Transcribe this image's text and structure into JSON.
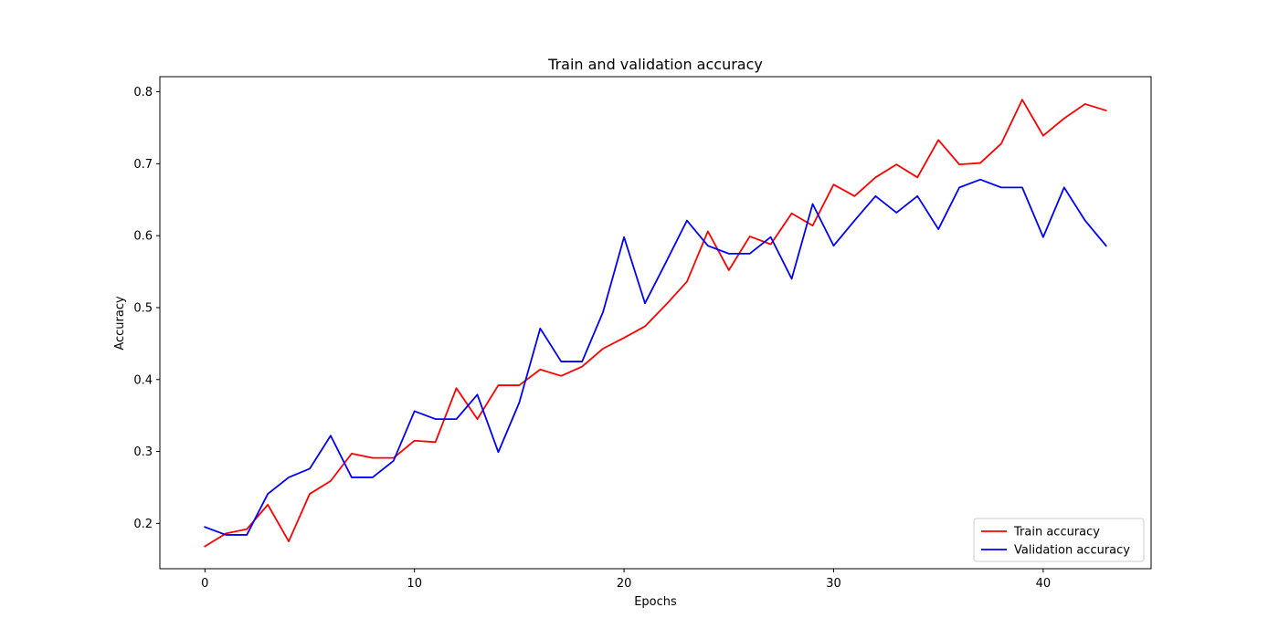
{
  "chart_data": {
    "type": "line",
    "title": "Train and validation accuracy",
    "xlabel": "Epochs",
    "ylabel": "Accuracy",
    "xlim": [
      -2.15,
      45.15
    ],
    "ylim": [
      0.137,
      0.821
    ],
    "xticks": [
      0,
      10,
      20,
      30,
      40
    ],
    "yticks": [
      0.2,
      0.3,
      0.4,
      0.5,
      0.6,
      0.7,
      0.8
    ],
    "grid": false,
    "legend_position": "lower-right",
    "x": [
      0,
      1,
      2,
      3,
      4,
      5,
      6,
      7,
      8,
      9,
      10,
      11,
      12,
      13,
      14,
      15,
      16,
      17,
      18,
      19,
      20,
      21,
      22,
      23,
      24,
      25,
      26,
      27,
      28,
      29,
      30,
      31,
      32,
      33,
      34,
      35,
      36,
      37,
      38,
      39,
      40,
      41,
      42,
      43
    ],
    "series": [
      {
        "name": "Train accuracy",
        "color": "#ff0000",
        "values": [
          0.168,
          0.186,
          0.192,
          0.226,
          0.175,
          0.241,
          0.259,
          0.297,
          0.291,
          0.291,
          0.315,
          0.313,
          0.388,
          0.345,
          0.392,
          0.392,
          0.414,
          0.405,
          0.418,
          0.443,
          0.458,
          0.474,
          0.504,
          0.536,
          0.606,
          0.552,
          0.599,
          0.588,
          0.631,
          0.614,
          0.671,
          0.655,
          0.681,
          0.699,
          0.681,
          0.733,
          0.699,
          0.701,
          0.728,
          0.789,
          0.739,
          0.763,
          0.783,
          0.774
        ]
      },
      {
        "name": "Validation accuracy",
        "color": "#0000ff",
        "values": [
          0.195,
          0.184,
          0.184,
          0.241,
          0.264,
          0.276,
          0.322,
          0.264,
          0.264,
          0.287,
          0.356,
          0.345,
          0.345,
          0.379,
          0.299,
          0.368,
          0.471,
          0.425,
          0.425,
          0.494,
          0.598,
          0.506,
          0.563,
          0.621,
          0.586,
          0.575,
          0.575,
          0.598,
          0.54,
          0.644,
          0.586,
          0.621,
          0.655,
          0.632,
          0.655,
          0.609,
          0.667,
          0.678,
          0.667,
          0.667,
          0.598,
          0.667,
          0.621,
          0.586
        ]
      }
    ]
  }
}
